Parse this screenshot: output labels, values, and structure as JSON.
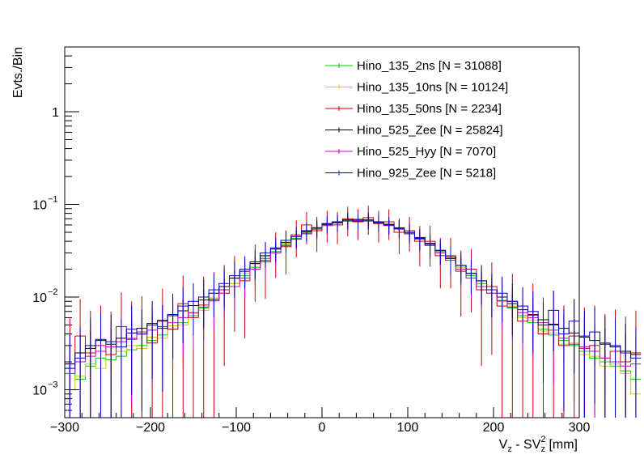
{
  "chart_data": {
    "type": "histogram-step",
    "title": "",
    "ylabel": "Evts./Bin",
    "xlabel": {
      "main": "V",
      "sub1": "z",
      "mid": " - SV",
      "sup": "2",
      "sub2": "z",
      "unit": " [mm]"
    },
    "xlim": [
      -300,
      300
    ],
    "ylim": [
      0.0005,
      5
    ],
    "yscale": "log",
    "x_ticks": [
      -300,
      -200,
      -100,
      0,
      100,
      200,
      300
    ],
    "x_tick_labels": [
      "−300",
      "−200",
      "−100",
      "0",
      "100",
      "200",
      "300"
    ],
    "y_tick_labels": [
      {
        "value": 0.001,
        "base": "10",
        "exp": "−3"
      },
      {
        "value": 0.01,
        "base": "10",
        "exp": "−2"
      },
      {
        "value": 0.1,
        "base": "10",
        "exp": "−1"
      },
      {
        "value": 1,
        "base": "1",
        "exp": ""
      }
    ],
    "bin_width": 12,
    "series": [
      {
        "name": "Hino_135_2ns [N = 31088]",
        "color": "#00cc00",
        "errscale": 0.1,
        "values": [
          0.0017,
          0.0013,
          0.0018,
          0.0022,
          0.0021,
          0.0023,
          0.0027,
          0.003,
          0.0034,
          0.0039,
          0.0045,
          0.0053,
          0.0063,
          0.0076,
          0.0092,
          0.011,
          0.014,
          0.017,
          0.021,
          0.026,
          0.031,
          0.037,
          0.043,
          0.049,
          0.055,
          0.06,
          0.064,
          0.067,
          0.068,
          0.067,
          0.064,
          0.06,
          0.055,
          0.049,
          0.043,
          0.037,
          0.031,
          0.026,
          0.021,
          0.017,
          0.014,
          0.011,
          0.0092,
          0.0076,
          0.0063,
          0.0053,
          0.0045,
          0.0039,
          0.0034,
          0.003,
          0.0026,
          0.0022,
          0.002,
          0.0018,
          0.0016,
          0.0013
        ]
      },
      {
        "name": "Hino_135_10ns [N = 10124]",
        "color": "#cccc00",
        "errscale": 0.18,
        "values": [
          0.001,
          0.0014,
          0.0019,
          0.0017,
          0.0024,
          0.0026,
          0.003,
          0.0028,
          0.0037,
          0.0036,
          0.0049,
          0.005,
          0.0067,
          0.0072,
          0.0098,
          0.011,
          0.014,
          0.018,
          0.02,
          0.027,
          0.03,
          0.038,
          0.042,
          0.05,
          0.054,
          0.061,
          0.063,
          0.068,
          0.066,
          0.068,
          0.063,
          0.061,
          0.054,
          0.05,
          0.042,
          0.038,
          0.03,
          0.027,
          0.021,
          0.018,
          0.013,
          0.011,
          0.009,
          0.008,
          0.006,
          0.0056,
          0.0043,
          0.0041,
          0.0031,
          0.0032,
          0.0024,
          0.0023,
          0.0018,
          0.0019,
          0.0015,
          0.0009
        ]
      },
      {
        "name": "Hino_135_50ns [N = 2234]",
        "color": "#cc0000",
        "errscale": 0.38,
        "values": [
          0.0019,
          0.0038,
          0.0025,
          0.003,
          0.0024,
          0.0048,
          0.0035,
          0.0042,
          0.0032,
          0.0055,
          0.0045,
          0.0085,
          0.006,
          0.0082,
          0.0095,
          0.012,
          0.016,
          0.015,
          0.023,
          0.024,
          0.033,
          0.035,
          0.047,
          0.06,
          0.052,
          0.062,
          0.06,
          0.07,
          0.065,
          0.072,
          0.062,
          0.065,
          0.05,
          0.052,
          0.04,
          0.04,
          0.028,
          0.028,
          0.019,
          0.02,
          0.012,
          0.013,
          0.008,
          0.009,
          0.0055,
          0.0065,
          0.004,
          0.005,
          0.003,
          0.0038,
          0.0028,
          0.003,
          0.0022,
          0.0026,
          0.002,
          0.0025
        ]
      },
      {
        "name": "Hino_525_Zee [N = 25824]",
        "color": "#000000",
        "errscale": 0.11,
        "values": [
          0.0019,
          0.0025,
          0.0028,
          0.0034,
          0.0031,
          0.0036,
          0.0041,
          0.0046,
          0.005,
          0.0056,
          0.0063,
          0.0071,
          0.0081,
          0.0093,
          0.011,
          0.013,
          0.016,
          0.019,
          0.023,
          0.028,
          0.033,
          0.039,
          0.045,
          0.051,
          0.056,
          0.061,
          0.065,
          0.068,
          0.069,
          0.068,
          0.065,
          0.061,
          0.056,
          0.05,
          0.044,
          0.038,
          0.032,
          0.027,
          0.022,
          0.018,
          0.015,
          0.012,
          0.01,
          0.0085,
          0.0073,
          0.0064,
          0.0057,
          0.0051,
          0.0046,
          0.0041,
          0.0037,
          0.0034,
          0.0031,
          0.0029,
          0.0026,
          0.0024
        ]
      },
      {
        "name": "Hino_525_Hyy [N = 7070]",
        "color": "#cc00cc",
        "errscale": 0.2,
        "values": [
          0.0015,
          0.002,
          0.0023,
          0.0026,
          0.0029,
          0.0033,
          0.0036,
          0.004,
          0.0044,
          0.0048,
          0.0053,
          0.006,
          0.0068,
          0.0078,
          0.0091,
          0.011,
          0.013,
          0.016,
          0.02,
          0.025,
          0.03,
          0.036,
          0.042,
          0.048,
          0.054,
          0.059,
          0.063,
          0.066,
          0.067,
          0.066,
          0.063,
          0.059,
          0.054,
          0.048,
          0.042,
          0.036,
          0.03,
          0.025,
          0.02,
          0.016,
          0.013,
          0.011,
          0.0091,
          0.0078,
          0.0068,
          0.006,
          0.0053,
          0.0044,
          0.0036,
          0.0031,
          0.0029,
          0.0026,
          0.0022,
          0.002,
          0.0018,
          0.0019
        ]
      },
      {
        "name": "Hino_925_Zee [N = 5218]",
        "color": "#0000cc",
        "errscale": 0.22,
        "values": [
          0.0017,
          0.0022,
          0.003,
          0.0035,
          0.0033,
          0.0029,
          0.0045,
          0.004,
          0.0052,
          0.0046,
          0.0065,
          0.008,
          0.009,
          0.01,
          0.012,
          0.014,
          0.017,
          0.02,
          0.024,
          0.03,
          0.034,
          0.041,
          0.045,
          0.052,
          0.056,
          0.062,
          0.064,
          0.068,
          0.066,
          0.068,
          0.064,
          0.06,
          0.055,
          0.05,
          0.043,
          0.037,
          0.032,
          0.026,
          0.022,
          0.018,
          0.015,
          0.012,
          0.011,
          0.009,
          0.008,
          0.007,
          0.005,
          0.0072,
          0.004,
          0.0055,
          0.0038,
          0.0042,
          0.0032,
          0.003,
          0.0025,
          0.0022
        ]
      }
    ]
  }
}
